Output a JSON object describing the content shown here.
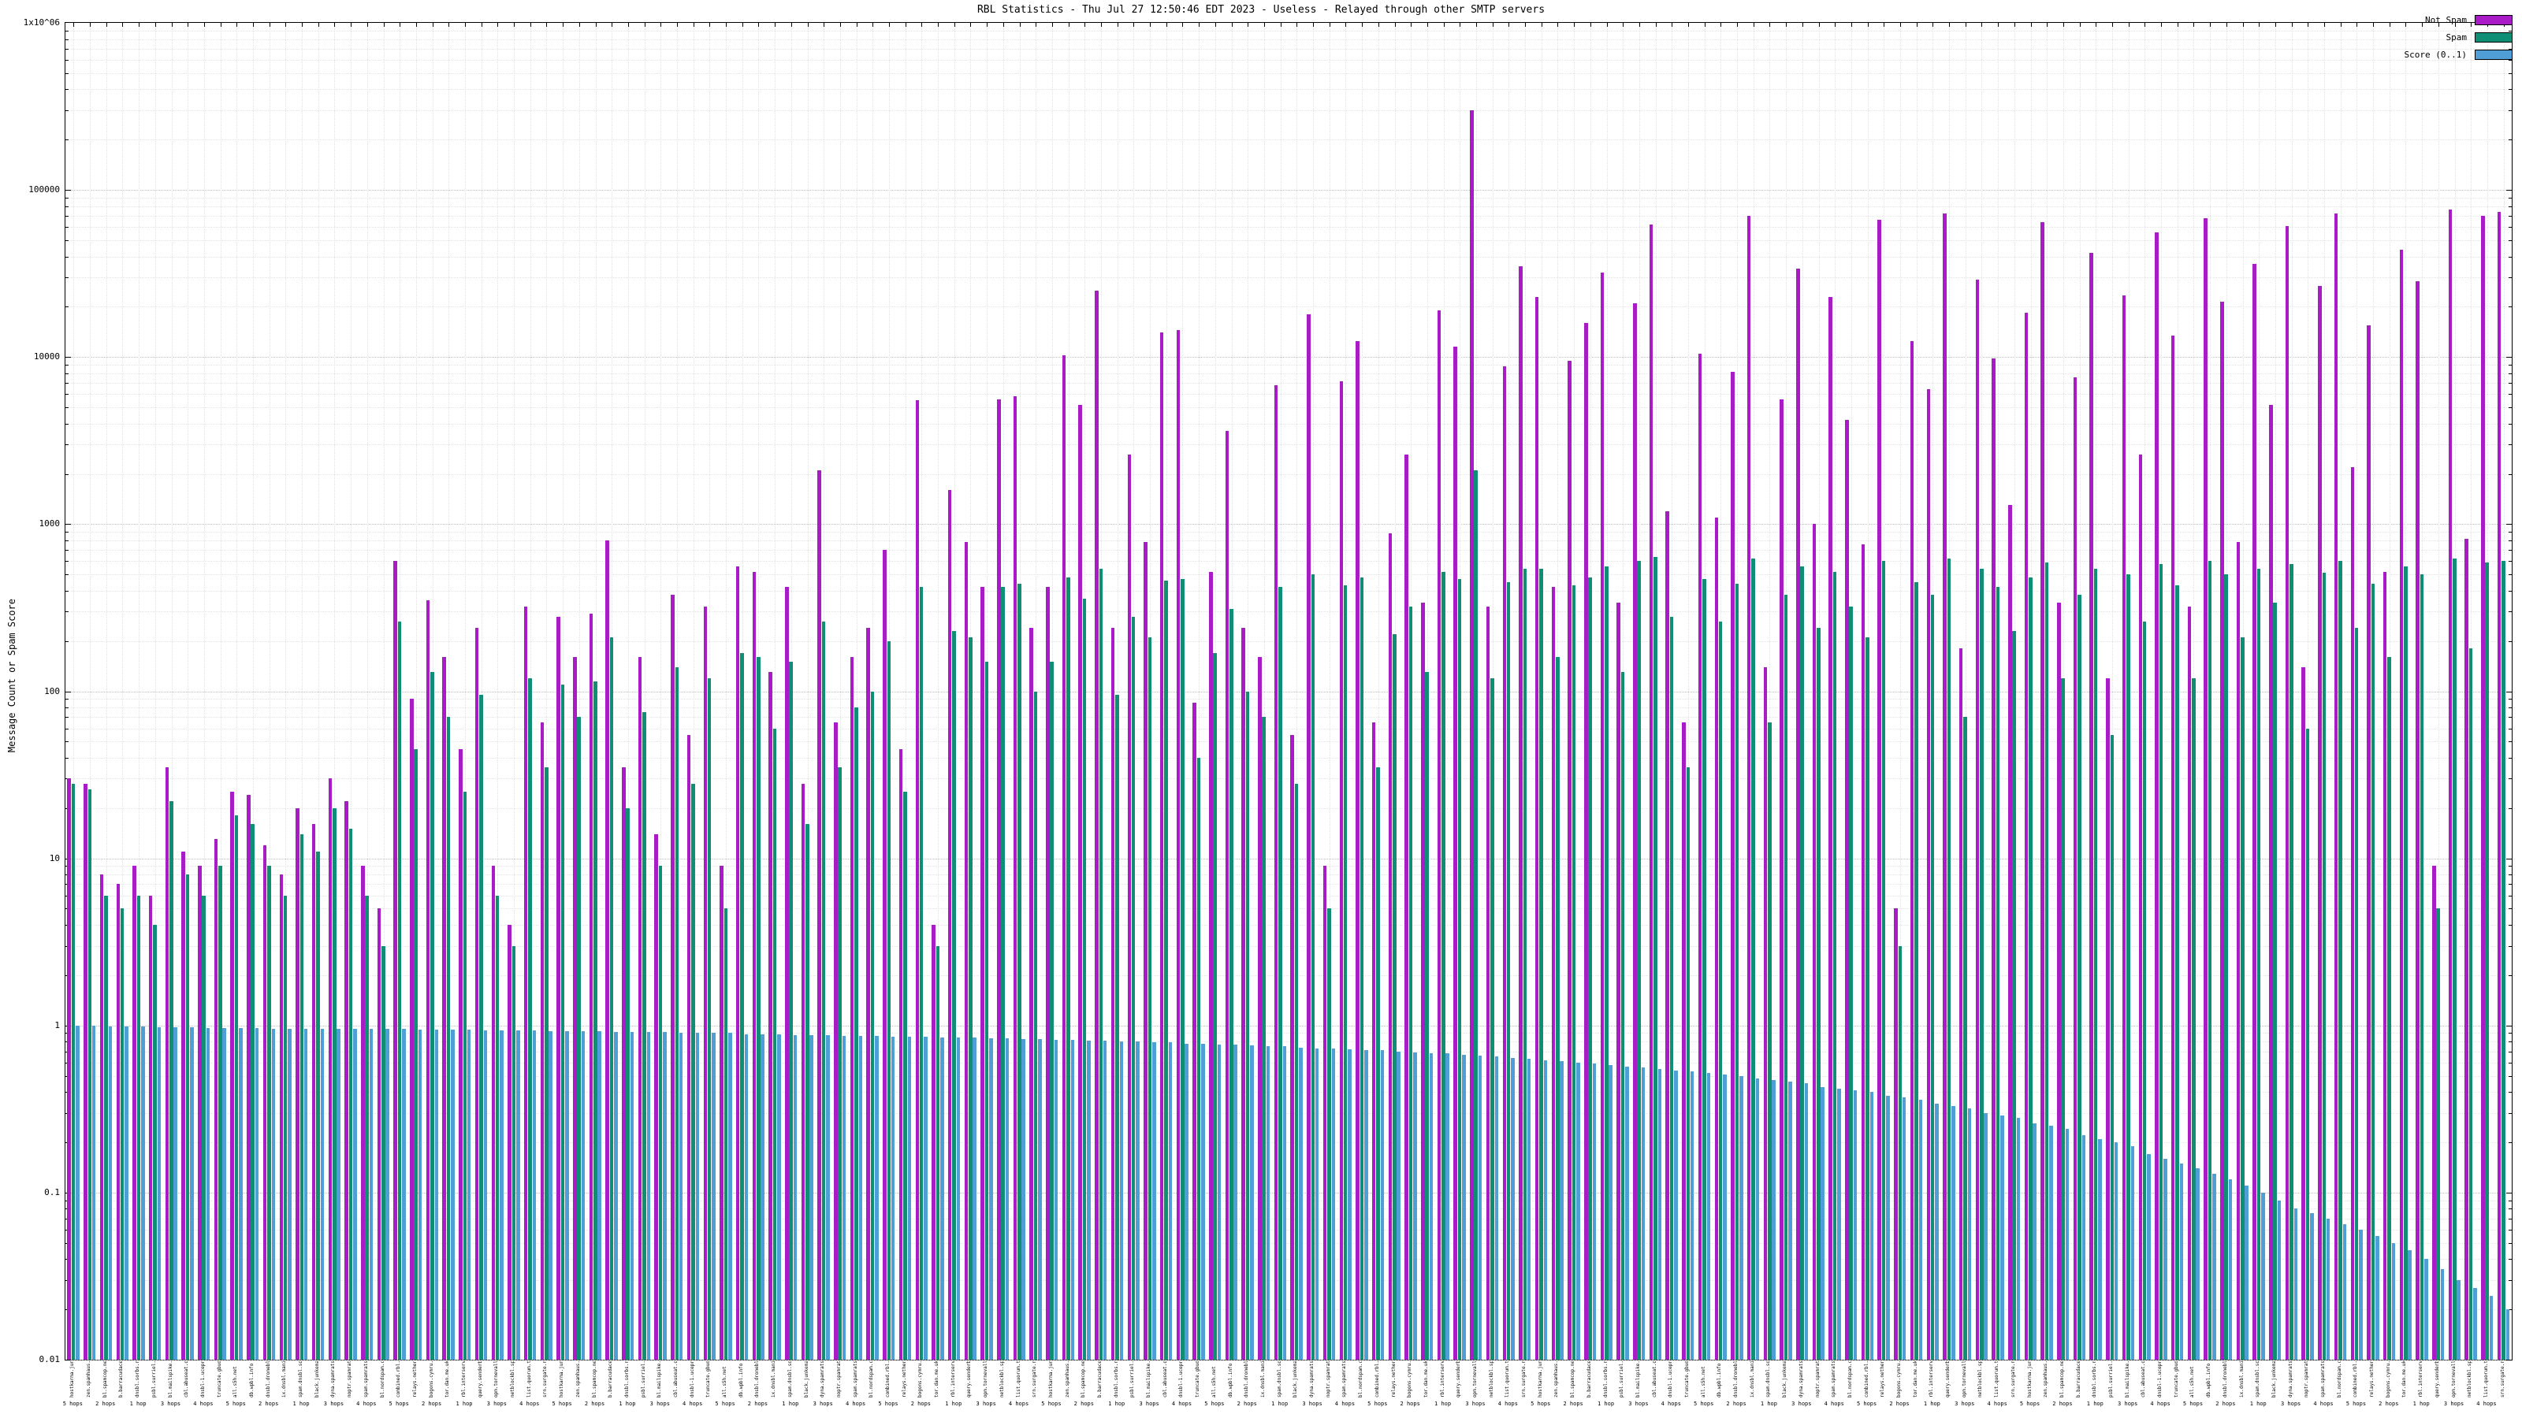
{
  "title": "RBL Statistics - Thu Jul 27 12:50:46 EDT 2023 - Useless - Relayed through other SMTP servers",
  "ylabel": "Message Count or Spam Score",
  "chart_data": {
    "type": "bar",
    "title": "RBL Statistics - Thu Jul 27 12:50:46 EDT 2023 - Useless - Relayed through other SMTP servers",
    "xlabel": "",
    "ylabel": "Message Count or Spam Score",
    "yscale": "log",
    "ylim": [
      0.01,
      1000000
    ],
    "grid": true,
    "legend_position": "top-right",
    "yticks": [
      {
        "v": 1000000,
        "label": "1x10^06"
      },
      {
        "v": 100000,
        "label": "100000"
      },
      {
        "v": 10000,
        "label": "10000"
      },
      {
        "v": 1000,
        "label": "1000"
      },
      {
        "v": 100,
        "label": "100"
      },
      {
        "v": 10,
        "label": "10"
      },
      {
        "v": 1,
        "label": "1"
      },
      {
        "v": 0.1,
        "label": "0.1"
      },
      {
        "v": 0.01,
        "label": "0.01"
      }
    ],
    "categories": [
      "hostkarma.junkemailfilter.com",
      "zen.spamhaus.org",
      "bl.spamcop.net",
      "b.barracudacentral.org",
      "dnsbl.sorbs.net",
      "psbl.surriel.com",
      "bl.mailspike.net",
      "cbl.abuseat.org",
      "dnsbl-1.uceprotect.net",
      "truncate.gbudb.net",
      "all.s5h.net",
      "db.wpbl.info",
      "dnsbl.dronebl.org",
      "ix.dnsbl.manitu.net",
      "spam.dnsbl.sorbs.net",
      "black.junkemailfilter.com",
      "dyna.spamrats.com",
      "noptr.spamrats.com",
      "spam.spamrats.com",
      "bl.nordspam.com",
      "combined.rbl.msrbl.net",
      "relays.nether.net",
      "bogons.cymru.com",
      "tor.dan.me.uk",
      "rbl.interserver.net",
      "query.senderbase.org",
      "opm.tornevall.org",
      "netblockbl.spamgrouper.to",
      "list.quorum.to",
      "srn.surgate.net",
      "hostkarma.junkemailfilter.com",
      "zen.spamhaus.org",
      "bl.spamcop.net",
      "b.barracudacentral.org",
      "dnsbl.sorbs.net",
      "psbl.surriel.com",
      "bl.mailspike.net",
      "cbl.abuseat.org",
      "dnsbl-1.uceprotect.net",
      "truncate.gbudb.net",
      "all.s5h.net",
      "db.wpbl.info",
      "dnsbl.dronebl.org",
      "ix.dnsbl.manitu.net",
      "spam.dnsbl.sorbs.net",
      "black.junkemailfilter.com",
      "dyna.spamrats.com",
      "noptr.spamrats.com",
      "spam.spamrats.com",
      "bl.nordspam.com",
      "combined.rbl.msrbl.net",
      "relays.nether.net",
      "bogons.cymru.com",
      "tor.dan.me.uk",
      "rbl.interserver.net",
      "query.senderbase.org",
      "opm.tornevall.org",
      "netblockbl.spamgrouper.to",
      "list.quorum.to",
      "srn.surgate.net",
      "hostkarma.junkemailfilter.com",
      "zen.spamhaus.org",
      "bl.spamcop.net",
      "b.barracudacentral.org",
      "dnsbl.sorbs.net",
      "psbl.surriel.com",
      "bl.mailspike.net",
      "cbl.abuseat.org",
      "dnsbl-1.uceprotect.net",
      "truncate.gbudb.net",
      "all.s5h.net",
      "db.wpbl.info",
      "dnsbl.dronebl.org",
      "ix.dnsbl.manitu.net",
      "spam.dnsbl.sorbs.net",
      "black.junkemailfilter.com",
      "dyna.spamrats.com",
      "noptr.spamrats.com",
      "spam.spamrats.com",
      "bl.nordspam.com",
      "combined.rbl.msrbl.net",
      "relays.nether.net",
      "bogons.cymru.com",
      "tor.dan.me.uk",
      "rbl.interserver.net",
      "query.senderbase.org",
      "opm.tornevall.org",
      "netblockbl.spamgrouper.to",
      "list.quorum.to",
      "srn.surgate.net",
      "hostkarma.junkemailfilter.com",
      "zen.spamhaus.org",
      "bl.spamcop.net",
      "b.barracudacentral.org",
      "dnsbl.sorbs.net",
      "psbl.surriel.com",
      "bl.mailspike.net",
      "cbl.abuseat.org",
      "dnsbl-1.uceprotect.net",
      "truncate.gbudb.net",
      "all.s5h.net",
      "db.wpbl.info",
      "dnsbl.dronebl.org",
      "ix.dnsbl.manitu.net",
      "spam.dnsbl.sorbs.net",
      "black.junkemailfilter.com",
      "dyna.spamrats.com",
      "noptr.spamrats.com",
      "spam.spamrats.com",
      "bl.nordspam.com",
      "combined.rbl.msrbl.net",
      "relays.nether.net",
      "bogons.cymru.com",
      "tor.dan.me.uk",
      "rbl.interserver.net",
      "query.senderbase.org",
      "opm.tornevall.org",
      "netblockbl.spamgrouper.to",
      "list.quorum.to",
      "srn.surgate.net",
      "hostkarma.junkemailfilter.com",
      "zen.spamhaus.org",
      "bl.spamcop.net",
      "b.barracudacentral.org",
      "dnsbl.sorbs.net",
      "psbl.surriel.com",
      "bl.mailspike.net",
      "cbl.abuseat.org",
      "dnsbl-1.uceprotect.net",
      "truncate.gbudb.net",
      "all.s5h.net",
      "db.wpbl.info",
      "dnsbl.dronebl.org",
      "ix.dnsbl.manitu.net",
      "spam.dnsbl.sorbs.net",
      "black.junkemailfilter.com",
      "dyna.spamrats.com",
      "noptr.spamrats.com",
      "spam.spamrats.com",
      "bl.nordspam.com",
      "combined.rbl.msrbl.net",
      "relays.nether.net",
      "bogons.cymru.com",
      "tor.dan.me.uk",
      "rbl.interserver.net",
      "query.senderbase.org",
      "opm.tornevall.org",
      "netblockbl.spamgrouper.to",
      "list.quorum.to",
      "srn.surgate.net"
    ],
    "sublabels": [
      "5 hops",
      "",
      "2 hops",
      "",
      "1 hop",
      "",
      "3 hops",
      "",
      "4 hops",
      "",
      "5 hops",
      "",
      "2 hops",
      "",
      "1 hop",
      "",
      "3 hops",
      "",
      "4 hops",
      "",
      "5 hops",
      "",
      "2 hops",
      "",
      "1 hop",
      "",
      "3 hops",
      "",
      "4 hops",
      "",
      "5 hops",
      "",
      "2 hops",
      "",
      "1 hop",
      "",
      "3 hops",
      "",
      "4 hops",
      "",
      "5 hops",
      "",
      "2 hops",
      "",
      "1 hop",
      "",
      "3 hops",
      "",
      "4 hops",
      "",
      "5 hops",
      "",
      "2 hops",
      "",
      "1 hop",
      "",
      "3 hops",
      "",
      "4 hops",
      "",
      "5 hops",
      "",
      "2 hops",
      "",
      "1 hop",
      "",
      "3 hops",
      "",
      "4 hops",
      "",
      "5 hops",
      "",
      "2 hops",
      "",
      "1 hop",
      "",
      "3 hops",
      "",
      "4 hops",
      "",
      "5 hops",
      "",
      "2 hops",
      "",
      "1 hop",
      "",
      "3 hops",
      "",
      "4 hops",
      "",
      "5 hops",
      "",
      "2 hops",
      "",
      "1 hop",
      "",
      "3 hops",
      "",
      "4 hops",
      "",
      "5 hops",
      "",
      "2 hops",
      "",
      "1 hop",
      "",
      "3 hops",
      "",
      "4 hops",
      "",
      "5 hops",
      "",
      "2 hops",
      "",
      "1 hop",
      "",
      "3 hops",
      "",
      "4 hops",
      "",
      "5 hops",
      "",
      "2 hops",
      "",
      "1 hop",
      "",
      "3 hops",
      "",
      "4 hops",
      "",
      "5 hops",
      "",
      "2 hops",
      "",
      "1 hop",
      "",
      "3 hops",
      "",
      "4 hops",
      "",
      "5 hops",
      "",
      "2 hops",
      "",
      "1 hop",
      "",
      "3 hops",
      "",
      "4 hops",
      ""
    ],
    "series": [
      {
        "name": "Not Spam",
        "color": "#a81bc7",
        "values": [
          30,
          28,
          8,
          7,
          9,
          6,
          35,
          11,
          9,
          13,
          25,
          24,
          12,
          8,
          20,
          16,
          30,
          22,
          9,
          5,
          600,
          90,
          350,
          160,
          45,
          240,
          9,
          4,
          320,
          65,
          280,
          160,
          290,
          800,
          35,
          160,
          14,
          380,
          55,
          320,
          9,
          560,
          520,
          130,
          420,
          28,
          2100,
          65,
          160,
          240,
          700,
          45,
          5500,
          4,
          1600,
          780,
          420,
          5600,
          5800,
          240,
          420,
          10200,
          5200,
          25000,
          240,
          2600,
          780,
          14000,
          14500,
          85,
          520,
          3600,
          240,
          160,
          6800,
          55,
          18000,
          9,
          7200,
          12500,
          65,
          880,
          2600,
          340,
          19000,
          11500,
          300000,
          320,
          8800,
          35000,
          23000,
          420,
          9500,
          16000,
          32000,
          340,
          21000,
          62000,
          1200,
          65,
          10500,
          1100,
          8200,
          70000,
          140,
          5600,
          34000,
          1000,
          23000,
          4200,
          760,
          66000,
          5,
          12500,
          6400,
          72000,
          180,
          29000,
          9800,
          1300,
          18500,
          64000,
          340,
          7600,
          42000,
          120,
          23500,
          2600,
          56000,
          13500,
          320,
          68000,
          21500,
          780,
          36000,
          5200,
          61000,
          140,
          26500,
          72000,
          2200,
          15500,
          520,
          44000,
          28500,
          9,
          76000,
          820,
          70000,
          74000
        ]
      },
      {
        "name": "Spam",
        "color": "#0e8e74",
        "values": [
          28,
          26,
          6,
          5,
          6,
          4,
          22,
          8,
          6,
          9,
          18,
          16,
          9,
          6,
          14,
          11,
          20,
          15,
          6,
          3,
          260,
          45,
          130,
          70,
          25,
          95,
          6,
          3,
          120,
          35,
          110,
          70,
          115,
          210,
          20,
          75,
          9,
          140,
          28,
          120,
          5,
          170,
          160,
          60,
          150,
          16,
          260,
          35,
          80,
          100,
          200,
          25,
          420,
          3,
          230,
          210,
          150,
          420,
          440,
          100,
          150,
          480,
          360,
          540,
          95,
          280,
          210,
          460,
          470,
          40,
          170,
          310,
          100,
          70,
          420,
          28,
          500,
          5,
          430,
          480,
          35,
          220,
          320,
          130,
          520,
          470,
          2100,
          120,
          450,
          540,
          540,
          160,
          430,
          480,
          560,
          130,
          600,
          640,
          280,
          35,
          470,
          260,
          440,
          620,
          65,
          380,
          560,
          240,
          520,
          320,
          210,
          600,
          3,
          450,
          380,
          620,
          70,
          540,
          420,
          230,
          480,
          590,
          120,
          380,
          540,
          55,
          500,
          260,
          580,
          430,
          120,
          600,
          500,
          210,
          540,
          340,
          580,
          60,
          510,
          600,
          240,
          440,
          160,
          560,
          500,
          5,
          620,
          180,
          590,
          600
        ]
      },
      {
        "name": "Score (0..1)",
        "color": "#4f9fd6",
        "values": [
          1.0,
          1.0,
          0.99,
          0.99,
          0.99,
          0.98,
          0.98,
          0.98,
          0.97,
          0.97,
          0.97,
          0.97,
          0.96,
          0.96,
          0.96,
          0.96,
          0.95,
          0.95,
          0.95,
          0.95,
          0.95,
          0.94,
          0.94,
          0.94,
          0.94,
          0.93,
          0.93,
          0.93,
          0.93,
          0.92,
          0.92,
          0.92,
          0.92,
          0.91,
          0.91,
          0.91,
          0.91,
          0.9,
          0.9,
          0.9,
          0.9,
          0.89,
          0.89,
          0.89,
          0.88,
          0.88,
          0.88,
          0.87,
          0.87,
          0.87,
          0.86,
          0.86,
          0.86,
          0.85,
          0.85,
          0.85,
          0.84,
          0.84,
          0.83,
          0.83,
          0.82,
          0.82,
          0.81,
          0.81,
          0.8,
          0.8,
          0.79,
          0.79,
          0.78,
          0.78,
          0.77,
          0.77,
          0.76,
          0.75,
          0.75,
          0.74,
          0.73,
          0.73,
          0.72,
          0.71,
          0.71,
          0.7,
          0.69,
          0.68,
          0.68,
          0.67,
          0.66,
          0.65,
          0.64,
          0.63,
          0.62,
          0.61,
          0.6,
          0.59,
          0.58,
          0.57,
          0.56,
          0.55,
          0.54,
          0.53,
          0.52,
          0.51,
          0.5,
          0.48,
          0.47,
          0.46,
          0.45,
          0.43,
          0.42,
          0.41,
          0.4,
          0.38,
          0.37,
          0.36,
          0.34,
          0.33,
          0.32,
          0.3,
          0.29,
          0.28,
          0.26,
          0.25,
          0.24,
          0.22,
          0.21,
          0.2,
          0.19,
          0.17,
          0.16,
          0.15,
          0.14,
          0.13,
          0.12,
          0.11,
          0.1,
          0.09,
          0.08,
          0.075,
          0.07,
          0.065,
          0.06,
          0.055,
          0.05,
          0.045,
          0.04,
          0.035,
          0.03,
          0.027,
          0.024,
          0.02
        ]
      }
    ]
  }
}
